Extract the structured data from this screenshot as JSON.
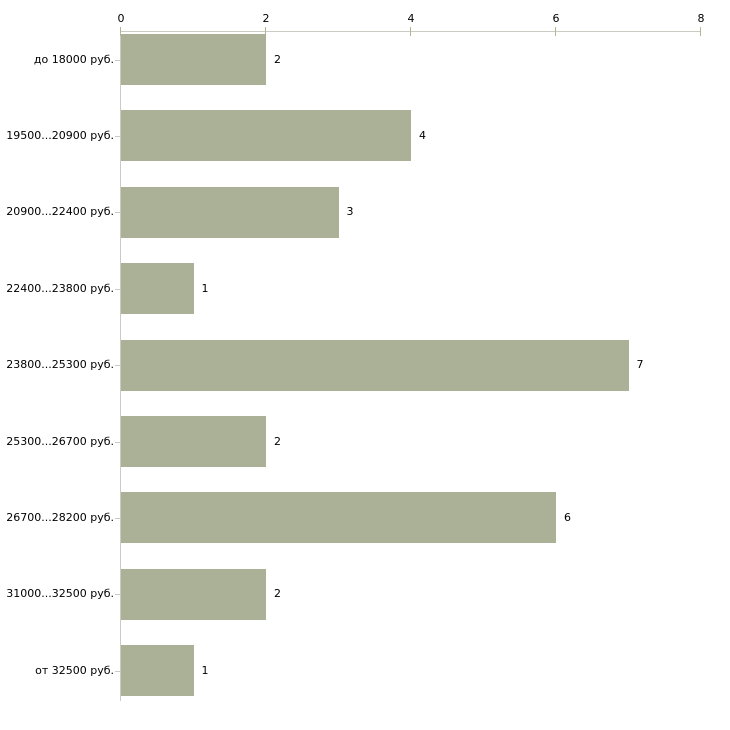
{
  "chart_data": {
    "type": "bar",
    "orientation": "horizontal",
    "title": "",
    "xlabel": "",
    "ylabel": "",
    "categories": [
      "до 18000 руб.",
      "19500...20900 руб.",
      "20900...22400 руб.",
      "22400...23800 руб.",
      "23800...25300 руб.",
      "25300...26700 руб.",
      "26700...28200 руб.",
      "31000...32500 руб.",
      "от 32500 руб."
    ],
    "values": [
      2,
      4,
      3,
      1,
      7,
      2,
      6,
      2,
      1
    ],
    "x_ticks": [
      "0",
      "2",
      "4",
      "6",
      "8"
    ],
    "xlim": [
      0,
      8
    ],
    "grid": false,
    "legend": false,
    "axis_position": "top",
    "colors": {
      "bar": "#abb196",
      "axis_line": "#cbcbc3",
      "tick_mark": "#b5b793",
      "text": "#000000",
      "background": "#ffffff"
    }
  }
}
